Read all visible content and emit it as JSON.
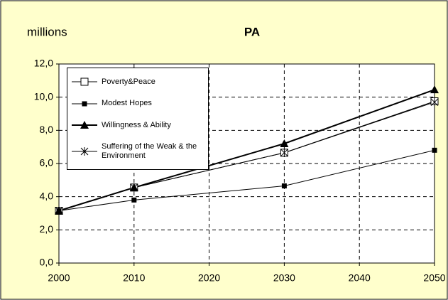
{
  "chart_data": {
    "type": "line",
    "title": "PA",
    "y_label": "millions",
    "x": [
      2000,
      2010,
      2030,
      2050
    ],
    "series": [
      {
        "name": "Poverty&Peace",
        "color": "#000000",
        "marker": "square-open",
        "values": [
          3.15,
          4.55,
          6.65,
          9.75
        ]
      },
      {
        "name": "Modest Hopes",
        "color": "#000000",
        "marker": "square-filled",
        "values": [
          3.15,
          3.8,
          4.65,
          6.8
        ]
      },
      {
        "name": "Willingness & Ability",
        "color": "#000000",
        "marker": "triangle",
        "values": [
          3.15,
          4.55,
          7.2,
          10.45
        ]
      },
      {
        "name": "Suffering of the Weak & the Environment",
        "color": "#000000",
        "marker": "asterisk",
        "values": [
          3.15,
          4.55,
          6.65,
          9.7
        ]
      }
    ],
    "xlim": [
      2000,
      2050
    ],
    "xticks": [
      2000,
      2010,
      2020,
      2030,
      2040,
      2050
    ],
    "ylim": [
      0,
      12
    ],
    "yticks": [
      {
        "value": 0,
        "label": "0,0"
      },
      {
        "value": 2,
        "label": "2,0"
      },
      {
        "value": 4,
        "label": "4,0"
      },
      {
        "value": 6,
        "label": "6,0"
      },
      {
        "value": 8,
        "label": "8,0"
      },
      {
        "value": 10,
        "label": "10,0"
      },
      {
        "value": 12,
        "label": "12,0"
      }
    ],
    "grid": true,
    "legend": "top-left"
  }
}
